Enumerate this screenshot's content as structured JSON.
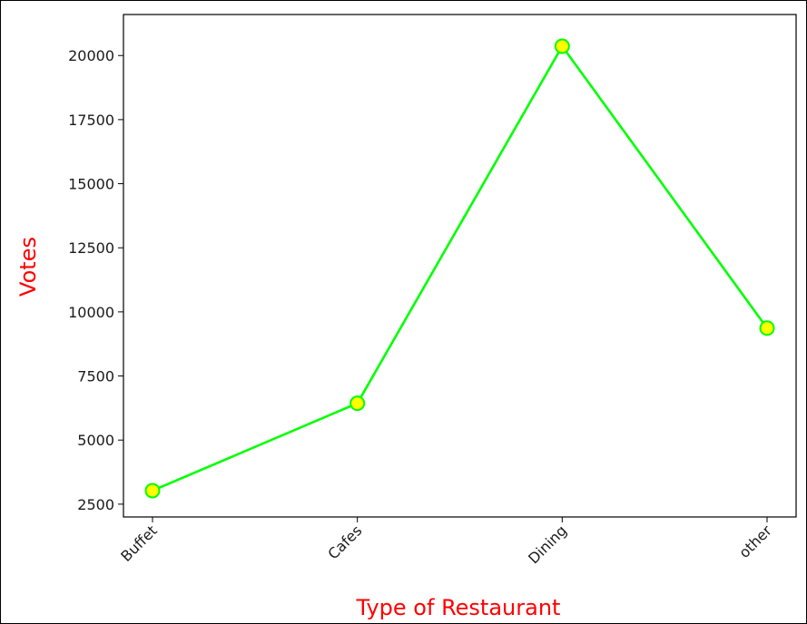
{
  "chart_data": {
    "type": "line",
    "title": "",
    "xlabel": "Type of Restaurant",
    "ylabel": "Votes",
    "categories": [
      "Buffet",
      "Cafes",
      "Dining",
      "other"
    ],
    "series": [
      {
        "values": [
          3028,
          6434,
          20363,
          9367
        ]
      }
    ],
    "yticks": [
      "2500",
      "5000",
      "7500",
      "10000",
      "12500",
      "15000",
      "17500",
      "20000"
    ],
    "ylim": [
      2000,
      21600
    ],
    "grid": false,
    "x_tick_rotation_deg": 45,
    "colors": {
      "line": "#00ff00",
      "marker_fill": "#ffff00",
      "marker_edge": "#00ff00",
      "axis_label": "#ff0000"
    }
  }
}
